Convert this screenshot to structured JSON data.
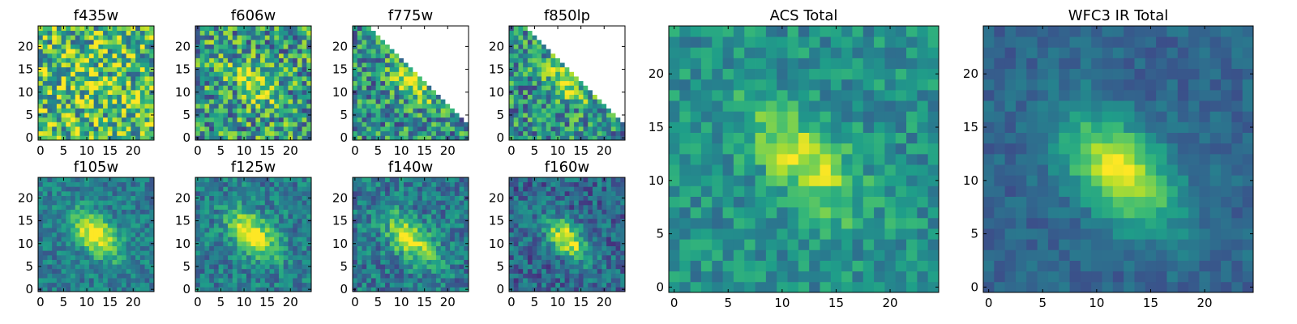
{
  "figure": {
    "colormap": [
      "#440154",
      "#482878",
      "#3e4989",
      "#31688e",
      "#26828e",
      "#1f9e89",
      "#35b779",
      "#6ece58",
      "#b5de2b",
      "#fde725"
    ],
    "missing_color": "#ffffff"
  },
  "chart_data": [
    {
      "type": "heatmap",
      "title": "f435w",
      "grid_size": 25,
      "xticks": [
        0,
        5,
        10,
        15,
        20
      ],
      "yticks": [
        0,
        5,
        10,
        15,
        20
      ],
      "xlim": [
        -0.5,
        24.5
      ],
      "ylim": [
        -0.5,
        24.5
      ],
      "grid": false,
      "colormap": "viridis",
      "source": {
        "center": [
          12,
          12
        ],
        "peak": 0.12,
        "sigma_major": 4,
        "sigma_minor": 2,
        "angle_deg": -45,
        "background": 0.7,
        "noise": 0.4,
        "seed": 11,
        "blank_triangle": false
      }
    },
    {
      "type": "heatmap",
      "title": "f606w",
      "grid_size": 25,
      "xticks": [
        0,
        5,
        10,
        15,
        20
      ],
      "yticks": [
        0,
        5,
        10,
        15,
        20
      ],
      "xlim": [
        -0.5,
        24.5
      ],
      "ylim": [
        -0.5,
        24.5
      ],
      "grid": false,
      "colormap": "viridis",
      "source": {
        "center": [
          12,
          12
        ],
        "peak": 0.4,
        "sigma_major": 4,
        "sigma_minor": 2,
        "angle_deg": -45,
        "background": 0.55,
        "noise": 0.36,
        "seed": 23,
        "blank_triangle": false
      }
    },
    {
      "type": "heatmap",
      "title": "f775w",
      "grid_size": 25,
      "xticks": [
        0,
        5,
        10,
        15,
        20
      ],
      "yticks": [
        0,
        5,
        10,
        15,
        20
      ],
      "xlim": [
        -0.5,
        24.5
      ],
      "ylim": [
        -0.5,
        24.5
      ],
      "grid": false,
      "colormap": "viridis",
      "source": {
        "center": [
          12,
          12
        ],
        "peak": 0.42,
        "sigma_major": 4,
        "sigma_minor": 2,
        "angle_deg": -45,
        "background": 0.5,
        "noise": 0.32,
        "seed": 37,
        "blank_triangle": true
      }
    },
    {
      "type": "heatmap",
      "title": "f850lp",
      "grid_size": 25,
      "xticks": [
        0,
        5,
        10,
        15,
        20
      ],
      "yticks": [
        0,
        5,
        10,
        15,
        20
      ],
      "xlim": [
        -0.5,
        24.5
      ],
      "ylim": [
        -0.5,
        24.5
      ],
      "grid": false,
      "colormap": "viridis",
      "source": {
        "center": [
          12,
          12
        ],
        "peak": 0.42,
        "sigma_major": 4,
        "sigma_minor": 2,
        "angle_deg": -45,
        "background": 0.5,
        "noise": 0.32,
        "seed": 41,
        "blank_triangle": true
      }
    },
    {
      "type": "heatmap",
      "title": "f105w",
      "grid_size": 25,
      "xticks": [
        0,
        5,
        10,
        15,
        20
      ],
      "yticks": [
        0,
        5,
        10,
        15,
        20
      ],
      "xlim": [
        -0.5,
        24.5
      ],
      "ylim": [
        -0.5,
        24.5
      ],
      "grid": false,
      "colormap": "viridis",
      "source": {
        "center": [
          12,
          12
        ],
        "peak": 0.6,
        "sigma_major": 4.5,
        "sigma_minor": 2.5,
        "angle_deg": -45,
        "background": 0.42,
        "noise": 0.16,
        "seed": 53,
        "blank_triangle": false
      }
    },
    {
      "type": "heatmap",
      "title": "f125w",
      "grid_size": 25,
      "xticks": [
        0,
        5,
        10,
        15,
        20
      ],
      "yticks": [
        0,
        5,
        10,
        15,
        20
      ],
      "xlim": [
        -0.5,
        24.5
      ],
      "ylim": [
        -0.5,
        24.5
      ],
      "grid": false,
      "colormap": "viridis",
      "source": {
        "center": [
          12,
          12
        ],
        "peak": 0.6,
        "sigma_major": 4.5,
        "sigma_minor": 2.5,
        "angle_deg": -45,
        "background": 0.42,
        "noise": 0.18,
        "seed": 67,
        "blank_triangle": false
      }
    },
    {
      "type": "heatmap",
      "title": "f140w",
      "grid_size": 25,
      "xticks": [
        0,
        5,
        10,
        15,
        20
      ],
      "yticks": [
        0,
        5,
        10,
        15,
        20
      ],
      "xlim": [
        -0.5,
        24.5
      ],
      "ylim": [
        -0.5,
        24.5
      ],
      "grid": false,
      "colormap": "viridis",
      "source": {
        "center": [
          12,
          11
        ],
        "peak": 0.58,
        "sigma_major": 4.5,
        "sigma_minor": 2.5,
        "angle_deg": -45,
        "background": 0.4,
        "noise": 0.2,
        "seed": 79,
        "blank_triangle": false
      }
    },
    {
      "type": "heatmap",
      "title": "f160w",
      "grid_size": 25,
      "xticks": [
        0,
        5,
        10,
        15,
        20
      ],
      "yticks": [
        0,
        5,
        10,
        15,
        20
      ],
      "xlim": [
        -0.5,
        24.5
      ],
      "ylim": [
        -0.5,
        24.5
      ],
      "grid": false,
      "colormap": "viridis",
      "source": {
        "center": [
          12,
          11
        ],
        "peak": 0.64,
        "sigma_major": 4,
        "sigma_minor": 2.2,
        "angle_deg": -45,
        "background": 0.33,
        "noise": 0.2,
        "seed": 83,
        "blank_triangle": false
      }
    },
    {
      "type": "heatmap",
      "title": "ACS Total",
      "grid_size": 25,
      "xticks": [
        0,
        5,
        10,
        15,
        20
      ],
      "yticks": [
        0,
        5,
        10,
        15,
        20
      ],
      "xlim": [
        -0.5,
        24.5
      ],
      "ylim": [
        -0.5,
        24.5
      ],
      "grid": false,
      "colormap": "viridis",
      "source": {
        "center": [
          12,
          12
        ],
        "peak": 0.42,
        "sigma_major": 4.5,
        "sigma_minor": 2.2,
        "angle_deg": -45,
        "background": 0.5,
        "noise": 0.16,
        "seed": 97,
        "blank_triangle": false
      }
    },
    {
      "type": "heatmap",
      "title": "WFC3 IR Total",
      "grid_size": 25,
      "xticks": [
        0,
        5,
        10,
        15,
        20
      ],
      "yticks": [
        0,
        5,
        10,
        15,
        20
      ],
      "xlim": [
        -0.5,
        24.5
      ],
      "ylim": [
        -0.5,
        24.5
      ],
      "grid": false,
      "colormap": "viridis",
      "source": {
        "center": [
          12,
          11
        ],
        "peak": 0.62,
        "sigma_major": 4.5,
        "sigma_minor": 2.6,
        "angle_deg": -45,
        "background": 0.33,
        "noise": 0.09,
        "seed": 101,
        "blank_triangle": false
      }
    }
  ]
}
